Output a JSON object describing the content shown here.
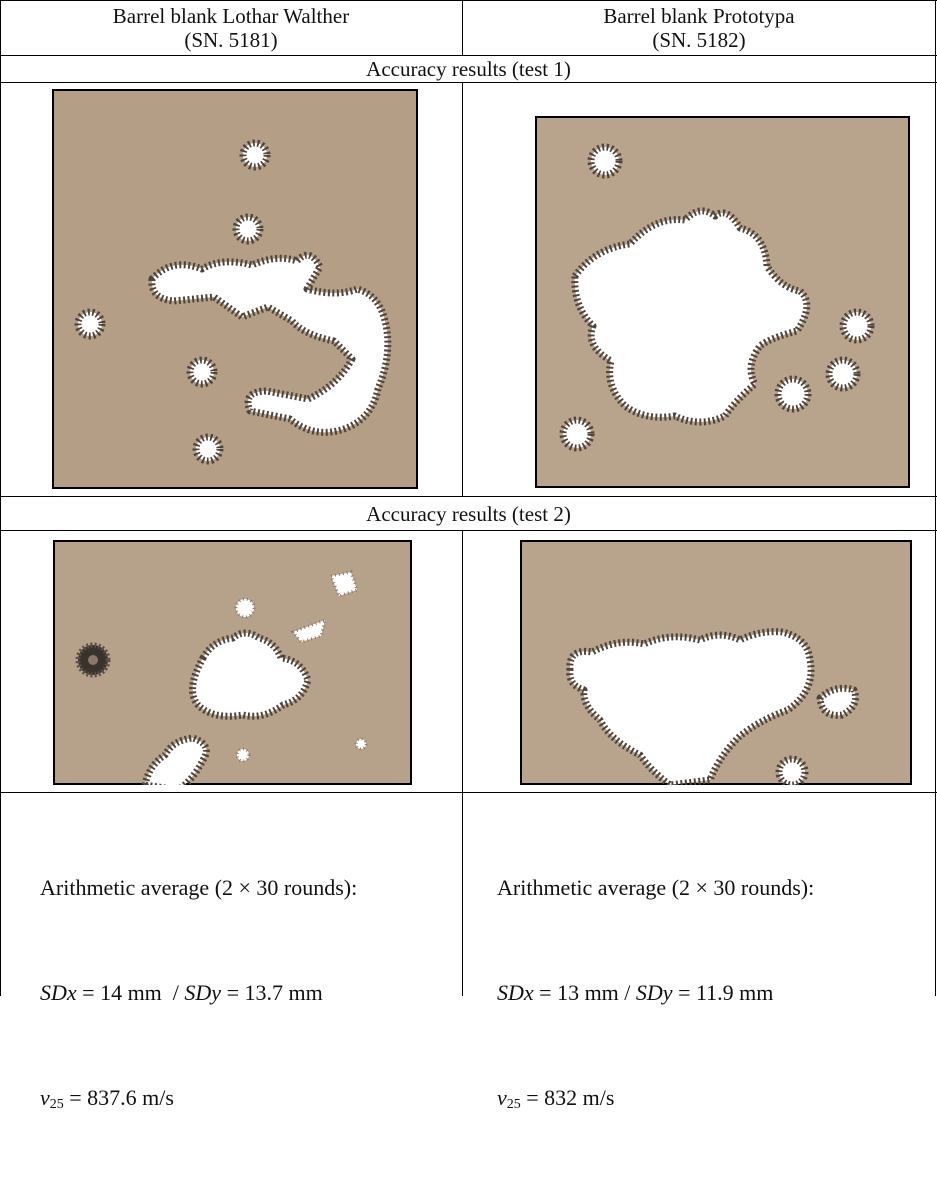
{
  "table": {
    "header": [
      {
        "lines": [
          "Barrel blank Lothar Walther",
          "(SN. 5181)"
        ]
      },
      {
        "lines": [
          "Barrel blank Prototypa",
          "(SN. 5182)"
        ]
      }
    ],
    "sections": [
      {
        "title": "Accuracy results (test 1)"
      },
      {
        "title": "Accuracy results (test 2)"
      }
    ],
    "footer": [
      {
        "average": "Arithmetic average (2 × 30 rounds):",
        "sd": [
          "SDx",
          " = 14 mm  / ",
          "SDy",
          " = 13.7 mm"
        ],
        "v": [
          "v",
          "25",
          " = 837.6 m/s"
        ]
      },
      {
        "average": "Arithmetic average (2 × 30 rounds):",
        "sd": [
          "SDx",
          " = 13 mm / ",
          "SDy",
          " = 11.9 mm"
        ],
        "v": [
          "v",
          "25",
          " = 832 m/s"
        ]
      }
    ]
  }
}
